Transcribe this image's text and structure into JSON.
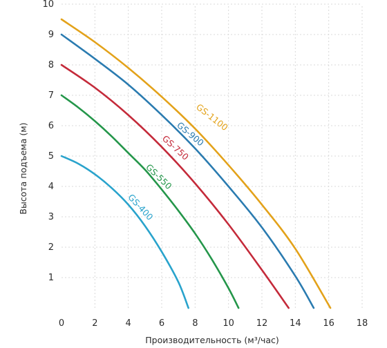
{
  "chart_data": {
    "type": "line",
    "title": "",
    "xlabel": "Производительность (м³/час)",
    "ylabel": "Высота подъема (м)",
    "xlim": [
      0,
      18
    ],
    "ylim": [
      0,
      10
    ],
    "x_ticks": [
      "0",
      "2",
      "4",
      "6",
      "8",
      "10",
      "12",
      "14",
      "16",
      "18"
    ],
    "y_ticks": [
      "1",
      "2",
      "3",
      "4",
      "5",
      "6",
      "7",
      "8",
      "9",
      "10"
    ],
    "grid": true,
    "series": [
      {
        "name": "GS-400",
        "color": "#29a3cc",
        "x": [
          0,
          1,
          2,
          3,
          4,
          5,
          6,
          7,
          7.6
        ],
        "y": [
          5.0,
          4.75,
          4.4,
          3.95,
          3.4,
          2.7,
          1.85,
          0.85,
          0
        ]
      },
      {
        "name": "GS-550",
        "color": "#24964a",
        "x": [
          0,
          1,
          2,
          3,
          4,
          5,
          6,
          7,
          8,
          9,
          10,
          10.6
        ],
        "y": [
          7.0,
          6.6,
          6.15,
          5.65,
          5.1,
          4.55,
          3.9,
          3.2,
          2.45,
          1.6,
          0.65,
          0
        ]
      },
      {
        "name": "GS-750",
        "color": "#c42a3a",
        "x": [
          0,
          2,
          4,
          6,
          8,
          10,
          12,
          13.6
        ],
        "y": [
          8.0,
          7.25,
          6.35,
          5.3,
          4.1,
          2.75,
          1.25,
          0
        ]
      },
      {
        "name": "GS-900",
        "color": "#2a7bb0",
        "x": [
          0,
          2,
          4,
          6,
          8,
          10,
          12,
          14,
          15.1
        ],
        "y": [
          9.0,
          8.2,
          7.35,
          6.35,
          5.25,
          4.0,
          2.65,
          1.05,
          0
        ]
      },
      {
        "name": "GS-1100",
        "color": "#e3a21a",
        "x": [
          0,
          2,
          4,
          6,
          8,
          10,
          12,
          14,
          16.1
        ],
        "y": [
          9.5,
          8.75,
          7.9,
          6.95,
          5.9,
          4.7,
          3.4,
          1.95,
          0
        ]
      }
    ],
    "annotations": [
      {
        "text": "GS-400",
        "x": 4.6,
        "y": 3.25,
        "angle": 47,
        "series": "GS-400"
      },
      {
        "text": "GS-550",
        "x": 5.7,
        "y": 4.25,
        "angle": 44,
        "series": "GS-550"
      },
      {
        "text": "GS-750",
        "x": 6.7,
        "y": 5.2,
        "angle": 42,
        "series": "GS-750"
      },
      {
        "text": "GS-900",
        "x": 7.6,
        "y": 5.65,
        "angle": 40,
        "series": "GS-900"
      },
      {
        "text": "GS-1100",
        "x": 8.9,
        "y": 6.2,
        "angle": 38,
        "series": "GS-1100"
      }
    ]
  }
}
